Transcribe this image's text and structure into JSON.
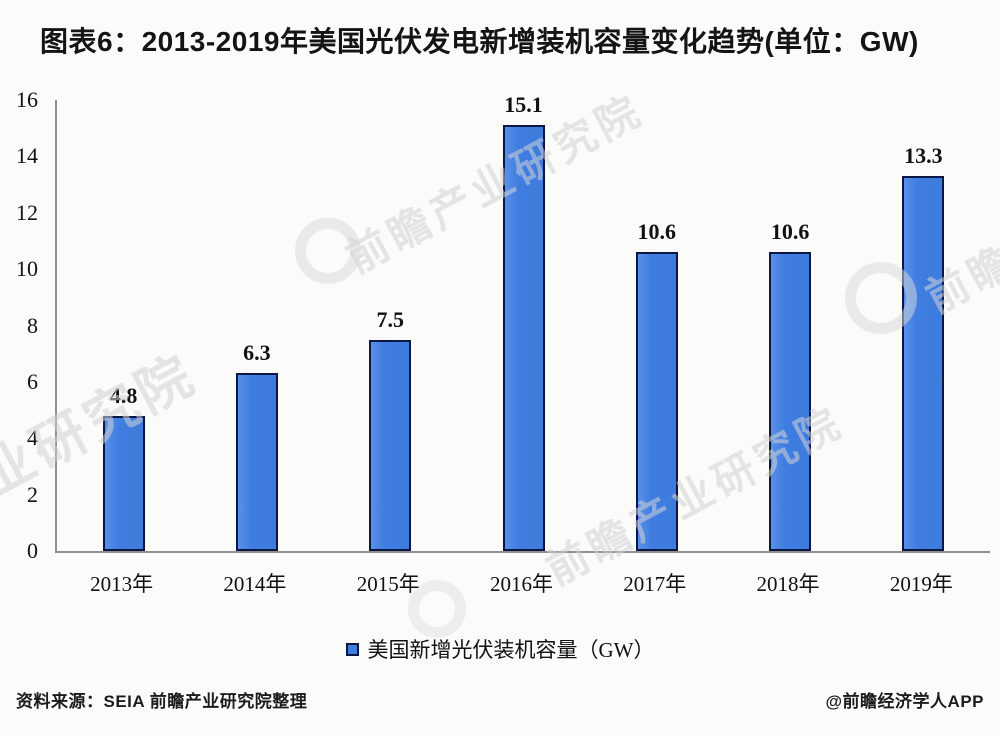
{
  "title": "图表6：2013-2019年美国光伏发电新增装机容量变化趋势(单位：GW)",
  "chart_data": {
    "type": "bar",
    "categories": [
      "2013年",
      "2014年",
      "2015年",
      "2016年",
      "2017年",
      "2018年",
      "2019年"
    ],
    "values": [
      4.8,
      6.3,
      7.5,
      15.1,
      10.6,
      10.6,
      13.3
    ],
    "series_name": "美国新增光伏装机容量（GW）",
    "title": "2013-2019年美国光伏发电新增装机容量变化趋势",
    "unit": "GW",
    "xlabel": "",
    "ylabel": "",
    "ylim": [
      0,
      16
    ],
    "yticks": [
      0,
      2,
      4,
      6,
      8,
      10,
      12,
      14,
      16
    ],
    "grid": false,
    "legend_position": "bottom",
    "bar_color": "#3f7ee0",
    "bar_border_color": "#0b1742",
    "axis_color": "#8f8f8f"
  },
  "legend": {
    "label": "美国新增光伏装机容量（GW）"
  },
  "footer": {
    "source": "资料来源：SEIA 前瞻产业研究院整理",
    "credit": "@前瞻经济学人APP"
  },
  "watermark": {
    "text": "前瞻产业研究院",
    "logo": "qianzhan-bird-circle-logo"
  }
}
